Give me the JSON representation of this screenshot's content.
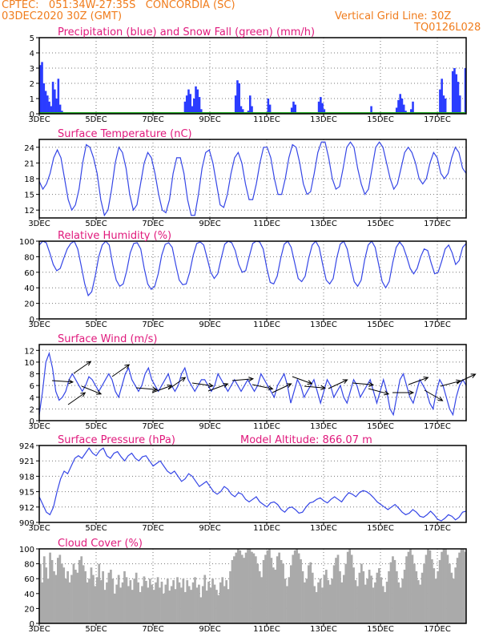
{
  "header": {
    "station": "CPTEC:   051:34W-27:35S   CONCORDIA (SC)",
    "date": "03DEC2020 30Z (GMT)",
    "grid": "Vertical Grid Line: 30Z",
    "code": "TQ0126L028"
  },
  "x_labels": [
    "3DEC",
    "5DEC",
    "7DEC",
    "9DEC",
    "11DEC",
    "13DEC",
    "15DEC",
    "17DEC"
  ],
  "colors": {
    "precip": "#2b3cff",
    "snow": "#22aa22",
    "line": "#3546e6",
    "cloud": "#aaaaaa",
    "title": "#e0197c",
    "header": "#f07c1c"
  },
  "chart_data": [
    {
      "type": "bar",
      "title": "Precipitation (blue) and Snow Fall (green) (mm/h)",
      "ylim": [
        0,
        5
      ],
      "yticks": [
        "0",
        "1",
        "2",
        "3",
        "4",
        "5"
      ],
      "series": [
        {
          "name": "Precipitation",
          "values": [
            3.2,
            3.4,
            2.0,
            1.5,
            1.2,
            0.8,
            0.5,
            2.1,
            1.6,
            1.0,
            2.3,
            0.6,
            0.2,
            0,
            0,
            0,
            0,
            0,
            0,
            0,
            0,
            0,
            0,
            0,
            0,
            0,
            0,
            0,
            0,
            0,
            0,
            0,
            0,
            0,
            0,
            0,
            0,
            0,
            0,
            0,
            0,
            0,
            0,
            0,
            0,
            0,
            0,
            0,
            0,
            0,
            0,
            0,
            0,
            0,
            0,
            0,
            0,
            0,
            0,
            0,
            0,
            0,
            0,
            0,
            0,
            0,
            0,
            0,
            0,
            0,
            0,
            0,
            0,
            0,
            0,
            0,
            0,
            0,
            0,
            0,
            0.8,
            1.2,
            1.6,
            1.3,
            0.5,
            1.0,
            1.8,
            1.6,
            1.1,
            0.3,
            0,
            0,
            0,
            0,
            0,
            0,
            0,
            0,
            0,
            0,
            0,
            0,
            0,
            0,
            0,
            0,
            0,
            0,
            1.2,
            2.2,
            2.0,
            0.5,
            0.3,
            0,
            0,
            0.2,
            1.2,
            0.5,
            0,
            0,
            0,
            0,
            0,
            0,
            0,
            0,
            1.0,
            0.6,
            0,
            0,
            0,
            0,
            0,
            0,
            0,
            0,
            0,
            0,
            0,
            0.4,
            0.8,
            0.6,
            0,
            0,
            0,
            0,
            0,
            0,
            0,
            0,
            0,
            0,
            0,
            0,
            0.8,
            1.1,
            0.7,
            0.3,
            0,
            0,
            0,
            0,
            0,
            0,
            0,
            0,
            0,
            0,
            0,
            0,
            0,
            0,
            0,
            0,
            0,
            0,
            0,
            0,
            0,
            0,
            0,
            0,
            0,
            0.5,
            0,
            0,
            0,
            0,
            0,
            0,
            0,
            0,
            0,
            0,
            0,
            0,
            0,
            0.4,
            0.9,
            1.3,
            1.0,
            0.6,
            0.2,
            0,
            0,
            0.3,
            0.8,
            0,
            0,
            0,
            0,
            0,
            0,
            0,
            0,
            0,
            0,
            0,
            0,
            0,
            0,
            1.6,
            2.3,
            1.2,
            1.0,
            0,
            0,
            0,
            2.8,
            3.0,
            2.6,
            2.1,
            1.2,
            0,
            0,
            3.0
          ]
        },
        {
          "name": "Snow Fall",
          "values": [
            0
          ]
        }
      ]
    },
    {
      "type": "line",
      "title": "Surface Temperature (nC)",
      "ylim": [
        10.5,
        25.5
      ],
      "yticks": [
        "12",
        "15",
        "18",
        "21",
        "24"
      ],
      "values": [
        17.5,
        16,
        17,
        19,
        22,
        23.5,
        22,
        18,
        14,
        12,
        13,
        16,
        21,
        24.5,
        24,
        22,
        19,
        14,
        11,
        12,
        16,
        21,
        24,
        23,
        20,
        15,
        12,
        13,
        17,
        21,
        23,
        22,
        19,
        15,
        12,
        11.5,
        14,
        19,
        22,
        22,
        19,
        14,
        11,
        11,
        15,
        20,
        23,
        23.5,
        21,
        17,
        13,
        12.5,
        15,
        19,
        22,
        23,
        21,
        17,
        14,
        14,
        17,
        21,
        24,
        24,
        22,
        18,
        15,
        15,
        18,
        22,
        24.5,
        24,
        21,
        17,
        15,
        15.5,
        19,
        23,
        25,
        25,
        22,
        18,
        16,
        16.5,
        20,
        24,
        25,
        24,
        20,
        17,
        15,
        16,
        20,
        24,
        25,
        24,
        21,
        18,
        16,
        17,
        20,
        23,
        24,
        23,
        21,
        18,
        17,
        18,
        21,
        23,
        22,
        19,
        18,
        19,
        22,
        24,
        23,
        20,
        19
      ]
    },
    {
      "type": "line",
      "title": "Relative Humidity (%)",
      "ylim": [
        0,
        100
      ],
      "yticks": [
        "0",
        "20",
        "40",
        "60",
        "80",
        "100"
      ],
      "values": [
        95,
        100,
        98,
        85,
        70,
        62,
        65,
        78,
        90,
        97,
        100,
        90,
        68,
        45,
        30,
        35,
        55,
        80,
        95,
        100,
        95,
        70,
        50,
        42,
        45,
        62,
        85,
        97,
        98,
        90,
        65,
        45,
        38,
        42,
        58,
        82,
        96,
        98,
        92,
        70,
        50,
        44,
        45,
        60,
        82,
        97,
        99,
        95,
        78,
        60,
        52,
        58,
        78,
        96,
        100,
        98,
        88,
        70,
        60,
        62,
        80,
        97,
        100,
        99,
        90,
        66,
        47,
        45,
        55,
        78,
        96,
        100,
        92,
        72,
        52,
        48,
        55,
        78,
        95,
        100,
        92,
        70,
        50,
        45,
        52,
        78,
        96,
        100,
        90,
        68,
        48,
        42,
        50,
        76,
        95,
        100,
        92,
        70,
        48,
        40,
        48,
        72,
        92,
        99,
        93,
        80,
        65,
        58,
        65,
        80,
        90,
        88,
        72,
        58,
        60,
        74,
        90,
        95,
        85,
        70,
        75,
        92,
        97
      ]
    },
    {
      "type": "line",
      "title": "Surface Wind (m/s)",
      "ylim": [
        0,
        13
      ],
      "yticks": [
        "0",
        "2",
        "4",
        "6",
        "8",
        "10",
        "12"
      ],
      "values": [
        1,
        5,
        10,
        11.5,
        9,
        5,
        3.5,
        4,
        5,
        7,
        8,
        7,
        6,
        5,
        6,
        7.5,
        7,
        6,
        5,
        6,
        7,
        8,
        7,
        5,
        4,
        6,
        8,
        9,
        7,
        6,
        5,
        6,
        8,
        9,
        7,
        6,
        5,
        6,
        7,
        8,
        6,
        5,
        6,
        8,
        9,
        7,
        6,
        5,
        6,
        7,
        7,
        6,
        5,
        6,
        8,
        7,
        6,
        5,
        6,
        7,
        6,
        5,
        6,
        7,
        6,
        5,
        6,
        8,
        7,
        6,
        5,
        4,
        6,
        7,
        8,
        6,
        3,
        5,
        7,
        6,
        4,
        5,
        6,
        7,
        5,
        3,
        5,
        7,
        6,
        4,
        5,
        6,
        4,
        3,
        5,
        7,
        6,
        4,
        5,
        6,
        7,
        5,
        3,
        5,
        7,
        5,
        2,
        1,
        4,
        7,
        8,
        6,
        4,
        3,
        5,
        7,
        6,
        5,
        3,
        2,
        5,
        7,
        6,
        4,
        2,
        1,
        4,
        6,
        7,
        6
      ]
    },
    {
      "type": "line",
      "title": "Surface Pressure (hPa)",
      "subtitle": "Model Altitude: 866.07 m",
      "ylim": [
        909,
        924
      ],
      "yticks": [
        "909",
        "912",
        "915",
        "918",
        "921",
        "924"
      ],
      "values": [
        914,
        912.5,
        911,
        910.5,
        912,
        915,
        917.5,
        919,
        918.5,
        920,
        921.5,
        922,
        921.5,
        922.5,
        923.5,
        922.5,
        922,
        923,
        923.5,
        922,
        921.5,
        922.5,
        922.8,
        921.8,
        921,
        922,
        922.5,
        921.5,
        921,
        921.8,
        922,
        921,
        920,
        920.5,
        921,
        920,
        919,
        918.5,
        919,
        918,
        917,
        917.5,
        918.5,
        918,
        917,
        916,
        916.5,
        917,
        916,
        915,
        914.5,
        915,
        916,
        915.5,
        914.5,
        914,
        914.8,
        914.5,
        913.5,
        913,
        913.5,
        914,
        913,
        912.5,
        912,
        912.8,
        913,
        912.5,
        911.5,
        911,
        911.8,
        912,
        911.5,
        910.8,
        911,
        912,
        912.8,
        913,
        913.5,
        913.8,
        913.2,
        912.8,
        913.5,
        914,
        913.5,
        913,
        914,
        914.8,
        914.5,
        914,
        914.8,
        915.2,
        915,
        914.5,
        913.8,
        913,
        912.5,
        912,
        911.5,
        912,
        912.5,
        911.8,
        911,
        910.5,
        910.8,
        911.5,
        911,
        910.2,
        910,
        910.5,
        911.2,
        910.5,
        909.6,
        909.3,
        909.8,
        910.5,
        910.2,
        909.5,
        910,
        911,
        911.2
      ]
    },
    {
      "type": "bar",
      "title": "Cloud Cover (%)",
      "ylim": [
        0,
        100
      ],
      "yticks": [
        "0",
        "20",
        "40",
        "60",
        "80",
        "100"
      ],
      "values": [
        80,
        55,
        90,
        75,
        60,
        95,
        85,
        70,
        65,
        88,
        92,
        80,
        75,
        60,
        70,
        55,
        65,
        80,
        72,
        68,
        85,
        90,
        78,
        70,
        55,
        60,
        75,
        65,
        50,
        62,
        80,
        58,
        70,
        45,
        55,
        68,
        72,
        60,
        40,
        52,
        65,
        48,
        55,
        70,
        62,
        50,
        58,
        45,
        60,
        68,
        55,
        42,
        50,
        63,
        57,
        48,
        60,
        52,
        45,
        55,
        62,
        48,
        56,
        40,
        52,
        60,
        44,
        50,
        58,
        46,
        62,
        55,
        48,
        60,
        42,
        58,
        50,
        45,
        55,
        62,
        48,
        52,
        35,
        50,
        65,
        44,
        56,
        48,
        60,
        52,
        45,
        38,
        55,
        62,
        50,
        58,
        46,
        70,
        85,
        90,
        95,
        100,
        98,
        92,
        88,
        95,
        100,
        100,
        96,
        94,
        90,
        80,
        70,
        62,
        85,
        92,
        98,
        100,
        88,
        75,
        72,
        90,
        95,
        85,
        80,
        60,
        50,
        62,
        78,
        92,
        98,
        100,
        94,
        86,
        70,
        55,
        60,
        78,
        82,
        68,
        50,
        42,
        55,
        60,
        48,
        65,
        72,
        58,
        52,
        60,
        78,
        88,
        92,
        70,
        55,
        65,
        80,
        96,
        100,
        92,
        75,
        58,
        50,
        68,
        80,
        70,
        52,
        60,
        72,
        64,
        48,
        55,
        68,
        74,
        62,
        50,
        42,
        56,
        70,
        82,
        90,
        85,
        70,
        55,
        48,
        60,
        72,
        90,
        96,
        100,
        92,
        80,
        70,
        58,
        52,
        68,
        80,
        92,
        100,
        98,
        86,
        74,
        60,
        70,
        85,
        96,
        100,
        100,
        92,
        80,
        68,
        60,
        75,
        88,
        95,
        100,
        100,
        96
      ]
    }
  ]
}
